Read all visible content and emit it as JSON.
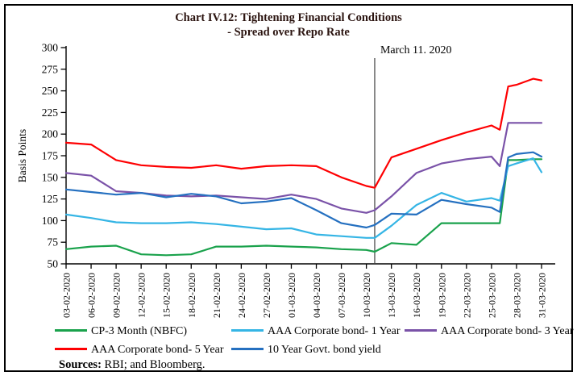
{
  "chart_data": {
    "type": "line",
    "title": "Chart IV.12: Tightening Financial Conditions",
    "subtitle": "- Spread over Repo Rate",
    "xlabel": "",
    "ylabel": "Basis Points",
    "ylim": [
      50,
      300
    ],
    "y_tick_step": 25,
    "grid": false,
    "legend_position": "bottom",
    "x_tick_labels": [
      "03-02-2020",
      "06-02-2020",
      "09-02-2020",
      "12-02-2020",
      "15-02-2020",
      "18-02-2020",
      "21-02-2020",
      "24-02-2020",
      "27-02-2020",
      "01-03-2020",
      "04-03-2020",
      "07-03-2020",
      "10-03-2020",
      "13-03-2020",
      "16-03-2020",
      "19-03-2020",
      "22-03-2020",
      "25-03-2020",
      "28-03-2020",
      "31-03-2020"
    ],
    "x": [
      "03-02-2020",
      "06-02-2020",
      "09-02-2020",
      "12-02-2020",
      "15-02-2020",
      "18-02-2020",
      "21-02-2020",
      "24-02-2020",
      "27-02-2020",
      "01-03-2020",
      "04-03-2020",
      "07-03-2020",
      "10-03-2020",
      "11-03-2020",
      "13-03-2020",
      "16-03-2020",
      "19-03-2020",
      "22-03-2020",
      "25-03-2020",
      "26-03-2020",
      "27-03-2020",
      "28-03-2020",
      "30-03-2020",
      "31-03-2020"
    ],
    "series": [
      {
        "name": "CP-3 Month (NBFC)",
        "color": "#1aa24c",
        "values": [
          67,
          70,
          71,
          61,
          60,
          61,
          70,
          70,
          71,
          70,
          69,
          67,
          66,
          64,
          74,
          72,
          97,
          97,
          97,
          97,
          170,
          170,
          171,
          171
        ]
      },
      {
        "name": "AAA Corporate bond- 1 Year",
        "color": "#35b5e5",
        "values": [
          107,
          103,
          98,
          97,
          97,
          98,
          96,
          93,
          90,
          91,
          84,
          82,
          80,
          80,
          94,
          118,
          132,
          122,
          126,
          123,
          163,
          166,
          172,
          156
        ]
      },
      {
        "name": "AAA Corporate bond- 3 Year",
        "color": "#7a52a8",
        "values": [
          155,
          152,
          134,
          132,
          129,
          128,
          129,
          127,
          125,
          130,
          125,
          114,
          109,
          112,
          128,
          155,
          166,
          171,
          174,
          163,
          213,
          213,
          213,
          213
        ]
      },
      {
        "name": "AAA Corporate bond- 5 Year",
        "color": "#fe0002",
        "values": [
          190,
          188,
          170,
          164,
          162,
          161,
          164,
          160,
          163,
          164,
          163,
          150,
          140,
          138,
          173,
          183,
          193,
          202,
          210,
          205,
          255,
          257,
          264,
          262
        ]
      },
      {
        "name": "10 Year Govt. bond yield",
        "color": "#2570c0",
        "values": [
          136,
          133,
          130,
          132,
          127,
          131,
          128,
          120,
          122,
          126,
          112,
          97,
          92,
          95,
          108,
          107,
          124,
          119,
          115,
          110,
          173,
          177,
          179,
          174
        ]
      }
    ],
    "annotation": {
      "label": "March 11. 2020",
      "date": "11-03-2020"
    }
  },
  "sources": {
    "bold": "Sources:",
    "text": " RBI; and Bloomberg."
  }
}
